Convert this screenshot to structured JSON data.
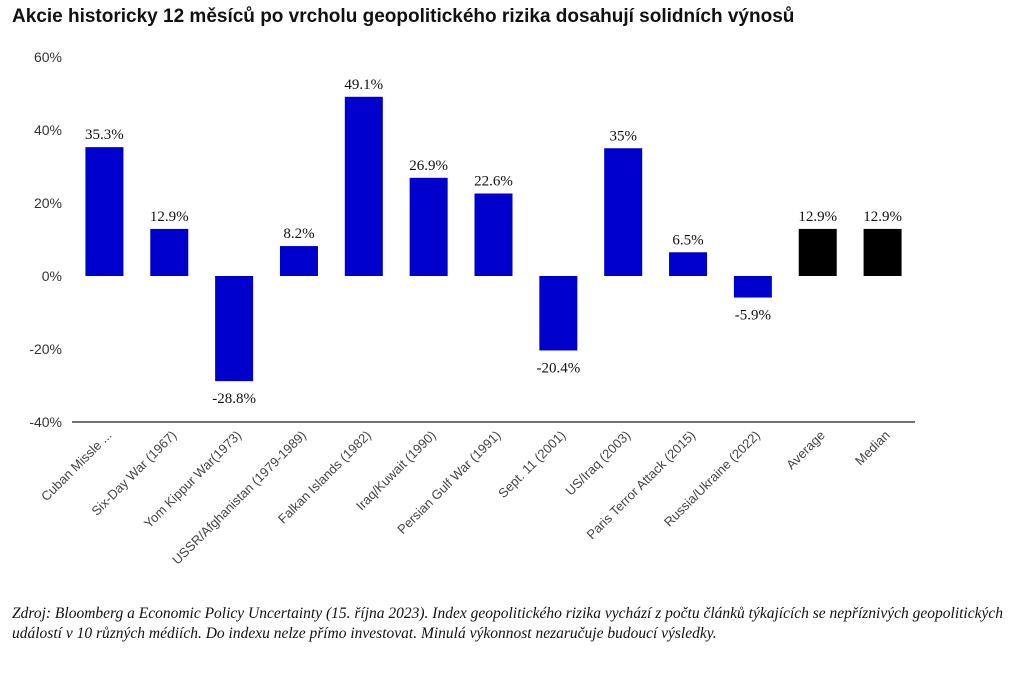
{
  "chart_data": {
    "type": "bar",
    "title": "Akcie historicky 12 měsíců po vrcholu geopolitického rizika dosahují solidních výnosů",
    "categories": [
      "Cuban Missle ...",
      "Six-Day War (1967)",
      "Yom Kippur War(1973)",
      "USSR/Afghanistan (1979-1989)",
      "Falkan Islands (1982)",
      "Iraq/Kuwait (1990)",
      "Persian Gulf War (1991)",
      "Sept. 11 (2001)",
      "US/Iraq (2003)",
      "Paris Terror Attack (2015)",
      "Russia/Ukraine (2022)",
      "Average",
      "Median"
    ],
    "values": [
      35.3,
      12.9,
      -28.8,
      8.2,
      49.1,
      26.9,
      22.6,
      -20.4,
      35,
      6.5,
      -5.9,
      12.9,
      12.9
    ],
    "data_labels": [
      "35.3%",
      "12.9%",
      "-28.8%",
      "8.2%",
      "49.1%",
      "26.9%",
      "22.6%",
      "-20.4%",
      "35%",
      "6.5%",
      "-5.9%",
      "12.9%",
      "12.9%"
    ],
    "yticks": [
      60,
      40,
      20,
      0,
      -20,
      -40
    ],
    "ytick_labels": [
      "60%",
      "40%",
      "20%",
      "0%",
      "-20%",
      "-40%"
    ],
    "ylim": [
      -40,
      60
    ],
    "grid": false,
    "legend": "none",
    "colors": {
      "event": "#0000cc",
      "summary": "#000000"
    },
    "summary_categories": [
      "Average",
      "Median"
    ]
  },
  "footnote": "Zdroj: Bloomberg a Economic Policy Uncertainty (15. října 2023). Index geopolitického rizika vychází z počtu článků týkajících se nepříznivých geopolitických událostí v 10 různých médiích. Do indexu nelze přímo investovat. Minulá výkonnost nezaručuje budoucí výsledky."
}
